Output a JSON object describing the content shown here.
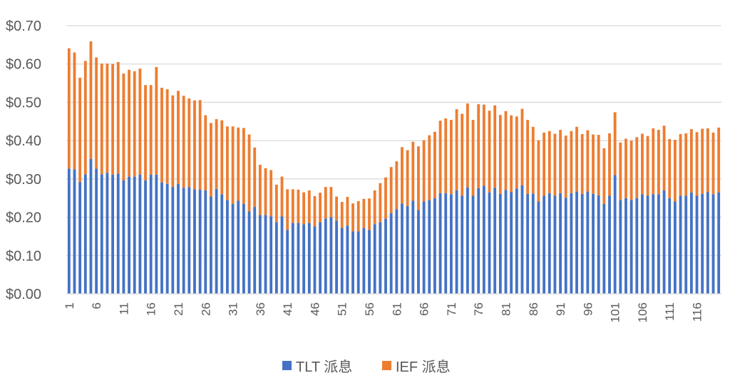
{
  "chart_data": {
    "type": "bar",
    "stacked": true,
    "categories": [
      "1",
      "2",
      "3",
      "4",
      "5",
      "6",
      "7",
      "8",
      "9",
      "10",
      "11",
      "12",
      "13",
      "14",
      "15",
      "16",
      "17",
      "18",
      "19",
      "20",
      "21",
      "22",
      "23",
      "24",
      "25",
      "26",
      "27",
      "28",
      "29",
      "30",
      "31",
      "32",
      "33",
      "34",
      "35",
      "36",
      "37",
      "38",
      "39",
      "40",
      "41",
      "42",
      "43",
      "44",
      "45",
      "46",
      "47",
      "48",
      "49",
      "50",
      "51",
      "52",
      "53",
      "54",
      "55",
      "56",
      "57",
      "58",
      "59",
      "60",
      "61",
      "62",
      "63",
      "64",
      "65",
      "66",
      "67",
      "68",
      "69",
      "70",
      "71",
      "72",
      "73",
      "74",
      "75",
      "76",
      "77",
      "78",
      "79",
      "80",
      "81",
      "82",
      "83",
      "84",
      "85",
      "86",
      "87",
      "88",
      "89",
      "90",
      "91",
      "92",
      "93",
      "94",
      "95",
      "96",
      "97",
      "98",
      "99",
      "100",
      "101",
      "102",
      "103",
      "104",
      "105",
      "106",
      "107",
      "108",
      "109",
      "110",
      "111",
      "112",
      "113",
      "114",
      "115",
      "116",
      "117",
      "118",
      "119",
      "120"
    ],
    "tick_labels_shown": [
      "1",
      "6",
      "11",
      "16",
      "21",
      "26",
      "31",
      "36",
      "41",
      "46",
      "51",
      "56",
      "61",
      "66",
      "71",
      "76",
      "81",
      "86",
      "91",
      "96",
      "101",
      "106",
      "111",
      "116"
    ],
    "series": [
      {
        "name": "TLT 派息",
        "color": "#4472C4",
        "values": [
          0.327,
          0.325,
          0.292,
          0.312,
          0.352,
          0.327,
          0.312,
          0.316,
          0.311,
          0.314,
          0.296,
          0.306,
          0.306,
          0.311,
          0.296,
          0.311,
          0.311,
          0.291,
          0.287,
          0.279,
          0.287,
          0.277,
          0.279,
          0.273,
          0.272,
          0.27,
          0.254,
          0.274,
          0.26,
          0.245,
          0.235,
          0.243,
          0.235,
          0.215,
          0.227,
          0.206,
          0.206,
          0.202,
          0.187,
          0.202,
          0.167,
          0.185,
          0.185,
          0.182,
          0.185,
          0.176,
          0.187,
          0.197,
          0.2,
          0.191,
          0.172,
          0.178,
          0.163,
          0.163,
          0.172,
          0.167,
          0.182,
          0.187,
          0.196,
          0.211,
          0.221,
          0.236,
          0.229,
          0.243,
          0.219,
          0.241,
          0.245,
          0.25,
          0.263,
          0.263,
          0.26,
          0.27,
          0.256,
          0.278,
          0.256,
          0.276,
          0.282,
          0.265,
          0.277,
          0.261,
          0.271,
          0.266,
          0.275,
          0.283,
          0.261,
          0.262,
          0.241,
          0.256,
          0.263,
          0.256,
          0.263,
          0.251,
          0.263,
          0.267,
          0.261,
          0.267,
          0.261,
          0.257,
          0.235,
          0.256,
          0.31,
          0.245,
          0.25,
          0.245,
          0.25,
          0.26,
          0.256,
          0.26,
          0.26,
          0.27,
          0.25,
          0.241,
          0.256,
          0.256,
          0.265,
          0.256,
          0.261,
          0.266,
          0.26,
          0.265
        ]
      },
      {
        "name": "IEF 派息",
        "color": "#ED7D31",
        "values": [
          0.314,
          0.305,
          0.272,
          0.296,
          0.307,
          0.29,
          0.289,
          0.285,
          0.289,
          0.291,
          0.279,
          0.279,
          0.275,
          0.277,
          0.249,
          0.234,
          0.281,
          0.247,
          0.247,
          0.239,
          0.243,
          0.24,
          0.231,
          0.232,
          0.234,
          0.196,
          0.192,
          0.182,
          0.193,
          0.192,
          0.202,
          0.191,
          0.198,
          0.201,
          0.155,
          0.131,
          0.122,
          0.121,
          0.098,
          0.104,
          0.106,
          0.088,
          0.087,
          0.083,
          0.085,
          0.079,
          0.077,
          0.082,
          0.079,
          0.063,
          0.068,
          0.075,
          0.073,
          0.079,
          0.076,
          0.082,
          0.088,
          0.102,
          0.108,
          0.12,
          0.125,
          0.147,
          0.146,
          0.154,
          0.166,
          0.16,
          0.169,
          0.173,
          0.189,
          0.195,
          0.194,
          0.212,
          0.214,
          0.219,
          0.198,
          0.219,
          0.212,
          0.213,
          0.215,
          0.206,
          0.206,
          0.2,
          0.188,
          0.2,
          0.193,
          0.174,
          0.16,
          0.165,
          0.162,
          0.162,
          0.165,
          0.162,
          0.162,
          0.169,
          0.156,
          0.16,
          0.155,
          0.158,
          0.145,
          0.163,
          0.164,
          0.15,
          0.155,
          0.155,
          0.159,
          0.158,
          0.156,
          0.172,
          0.168,
          0.169,
          0.154,
          0.161,
          0.161,
          0.163,
          0.165,
          0.166,
          0.17,
          0.166,
          0.161,
          0.169
        ]
      }
    ],
    "title": "",
    "xlabel": "",
    "ylabel": "",
    "ylim": [
      0,
      0.7
    ],
    "yticks": [
      "$0.00",
      "$0.10",
      "$0.20",
      "$0.30",
      "$0.40",
      "$0.50",
      "$0.60",
      "$0.70"
    ],
    "ytick_values": [
      0,
      0.1,
      0.2,
      0.3,
      0.4,
      0.5,
      0.6,
      0.7
    ],
    "grid": true,
    "gridline_color": "#D9D9D9",
    "legend_position": "bottom"
  }
}
